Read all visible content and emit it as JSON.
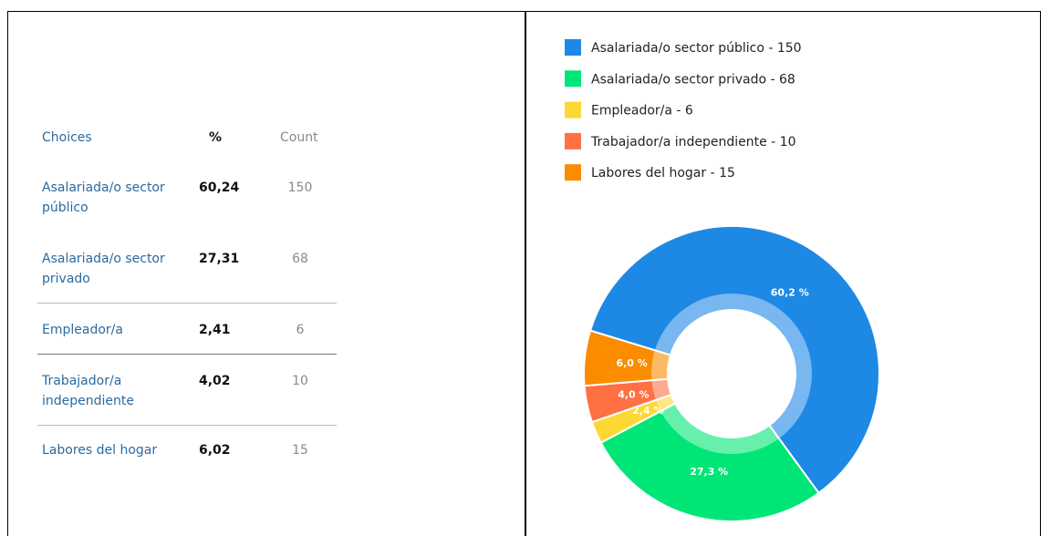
{
  "table": {
    "header": [
      "Choices",
      "%",
      "Count"
    ],
    "rows": [
      [
        "Asalariada/o sector público",
        "60,24",
        "150"
      ],
      [
        "Asalariada/o sector privado",
        "27,31",
        "68"
      ],
      [
        "Empleador/a",
        "2,41",
        "6"
      ],
      [
        "Trabajador/a independiente",
        "4,02",
        "10"
      ],
      [
        "Labores del hogar",
        "6,02",
        "15"
      ]
    ]
  },
  "chart_data": {
    "type": "donut",
    "categories": [
      "Asalariada/o sector público - 150",
      "Asalariada/o sector privado - 68",
      "Empleador/a - 6",
      "Trabajador/a independiente - 10",
      "Labores del hogar - 15"
    ],
    "values": [
      60.24,
      27.31,
      2.41,
      4.02,
      6.02
    ],
    "value_labels": [
      "60,2 %",
      "27,3 %",
      "2,4 %",
      "4,0 %",
      "6,0 %"
    ],
    "colors": [
      "#1e88e5",
      "#00e676",
      "#fdd835",
      "#ff7043",
      "#fb8c00"
    ],
    "legend": "top"
  }
}
